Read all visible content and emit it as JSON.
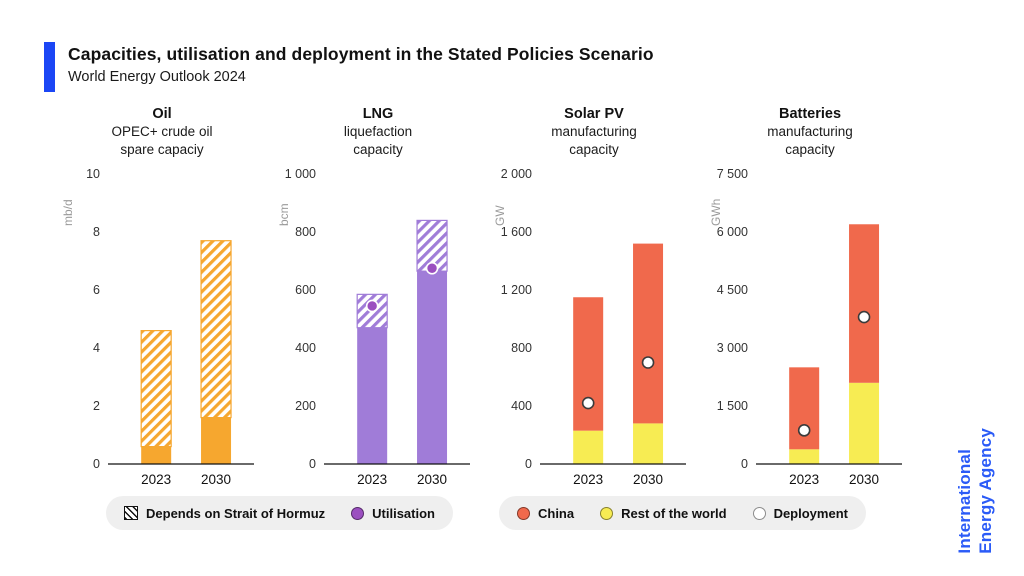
{
  "header": {
    "title": "Capacities, utilisation and deployment in the Stated Policies Scenario",
    "subtitle": "World Energy Outlook 2024"
  },
  "brand": {
    "line1": "International",
    "line2": "Energy Agency"
  },
  "colors": {
    "accent_blue": "#1B46F5",
    "iea_blue": "#2B5BF7",
    "oil_orange": "#F6A72F",
    "lng_purple": "#A07CD8",
    "utilisation": "#9B4FC0",
    "china": "#F0694C",
    "rest_of_world": "#F7EC53",
    "deployment": "#FFFFFF"
  },
  "legends": [
    {
      "items": [
        {
          "icon": "hatch-swatch",
          "label": "Depends on Strait of Hormuz"
        },
        {
          "icon": "utilisation-dot",
          "label": "Utilisation"
        }
      ]
    },
    {
      "items": [
        {
          "icon": "china-dot",
          "label": "China"
        },
        {
          "icon": "rest-of-world-dot",
          "label": "Rest of the world"
        },
        {
          "icon": "deployment-dot",
          "label": "Deployment"
        }
      ]
    }
  ],
  "chart_data": [
    {
      "type": "bar",
      "title": "Oil",
      "subtitle": "OPEC+ crude oil\nspare capaciy",
      "unit": "mb/d",
      "ymax": 10,
      "yticks": [
        {
          "v": 0,
          "label": "0"
        },
        {
          "v": 2,
          "label": "2"
        },
        {
          "v": 4,
          "label": "4"
        },
        {
          "v": 6,
          "label": "6"
        },
        {
          "v": 8,
          "label": "8"
        },
        {
          "v": 10,
          "label": "10"
        }
      ],
      "categories": [
        "2023",
        "2030"
      ],
      "bars": [
        {
          "category": "2023",
          "segments": [
            {
              "name": "spare-capacity",
              "value": 0.6,
              "color": "#F6A72F",
              "pattern": "solid"
            },
            {
              "name": "depends-on-strait-of-hormuz",
              "value": 4.0,
              "color": "#F6A72F",
              "pattern": "hatch"
            }
          ]
        },
        {
          "category": "2030",
          "segments": [
            {
              "name": "spare-capacity",
              "value": 1.6,
              "color": "#F6A72F",
              "pattern": "solid"
            },
            {
              "name": "depends-on-strait-of-hormuz",
              "value": 6.1,
              "color": "#F6A72F",
              "pattern": "hatch"
            }
          ]
        }
      ],
      "markers": []
    },
    {
      "type": "bar",
      "title": "LNG",
      "subtitle": "liquefaction\ncapacity",
      "unit": "bcm",
      "ymax": 1000,
      "yticks": [
        {
          "v": 0,
          "label": "0"
        },
        {
          "v": 200,
          "label": "200"
        },
        {
          "v": 400,
          "label": "400"
        },
        {
          "v": 600,
          "label": "600"
        },
        {
          "v": 800,
          "label": "800"
        },
        {
          "v": 1000,
          "label": "1 000"
        }
      ],
      "categories": [
        "2023",
        "2030"
      ],
      "bars": [
        {
          "category": "2023",
          "segments": [
            {
              "name": "capacity",
              "value": 470,
              "color": "#A07CD8",
              "pattern": "solid"
            },
            {
              "name": "depends-on-strait-of-hormuz",
              "value": 115,
              "color": "#A07CD8",
              "pattern": "hatch"
            }
          ]
        },
        {
          "category": "2030",
          "segments": [
            {
              "name": "capacity",
              "value": 665,
              "color": "#A07CD8",
              "pattern": "solid"
            },
            {
              "name": "depends-on-strait-of-hormuz",
              "value": 175,
              "color": "#A07CD8",
              "pattern": "hatch"
            }
          ]
        }
      ],
      "markers": [
        {
          "category": "2023",
          "name": "utilisation",
          "value": 545,
          "fill": "#9B4FC0",
          "stroke": "#FFFFFF"
        },
        {
          "category": "2030",
          "name": "utilisation",
          "value": 675,
          "fill": "#9B4FC0",
          "stroke": "#FFFFFF"
        }
      ]
    },
    {
      "type": "bar",
      "title": "Solar PV",
      "subtitle": "manufacturing\ncapacity",
      "unit": "GW",
      "ymax": 2000,
      "yticks": [
        {
          "v": 0,
          "label": "0"
        },
        {
          "v": 400,
          "label": "400"
        },
        {
          "v": 800,
          "label": "800"
        },
        {
          "v": 1200,
          "label": "1 200"
        },
        {
          "v": 1600,
          "label": "1 600"
        },
        {
          "v": 2000,
          "label": "2 000"
        }
      ],
      "categories": [
        "2023",
        "2030"
      ],
      "bars": [
        {
          "category": "2023",
          "segments": [
            {
              "name": "rest-of-the-world",
              "value": 230,
              "color": "#F7EC53",
              "pattern": "solid"
            },
            {
              "name": "china",
              "value": 920,
              "color": "#F0694C",
              "pattern": "solid"
            }
          ]
        },
        {
          "category": "2030",
          "segments": [
            {
              "name": "rest-of-the-world",
              "value": 280,
              "color": "#F7EC53",
              "pattern": "solid"
            },
            {
              "name": "china",
              "value": 1240,
              "color": "#F0694C",
              "pattern": "solid"
            }
          ]
        }
      ],
      "markers": [
        {
          "category": "2023",
          "name": "deployment",
          "value": 420,
          "fill": "#FFFFFF",
          "stroke": "#3b3b3b"
        },
        {
          "category": "2030",
          "name": "deployment",
          "value": 700,
          "fill": "#FFFFFF",
          "stroke": "#3b3b3b"
        }
      ]
    },
    {
      "type": "bar",
      "title": "Batteries",
      "subtitle": "manufacturing\ncapacity",
      "unit": "GWh",
      "ymax": 7500,
      "yticks": [
        {
          "v": 0,
          "label": "0"
        },
        {
          "v": 1500,
          "label": "1 500"
        },
        {
          "v": 3000,
          "label": "3 000"
        },
        {
          "v": 4500,
          "label": "4 500"
        },
        {
          "v": 6000,
          "label": "6 000"
        },
        {
          "v": 7500,
          "label": "7 500"
        }
      ],
      "categories": [
        "2023",
        "2030"
      ],
      "bars": [
        {
          "category": "2023",
          "segments": [
            {
              "name": "rest-of-the-world",
              "value": 380,
              "color": "#F7EC53",
              "pattern": "solid"
            },
            {
              "name": "china",
              "value": 2120,
              "color": "#F0694C",
              "pattern": "solid"
            }
          ]
        },
        {
          "category": "2030",
          "segments": [
            {
              "name": "rest-of-the-world",
              "value": 2100,
              "color": "#F7EC53",
              "pattern": "solid"
            },
            {
              "name": "china",
              "value": 4100,
              "color": "#F0694C",
              "pattern": "solid"
            }
          ]
        }
      ],
      "markers": [
        {
          "category": "2023",
          "name": "deployment",
          "value": 870,
          "fill": "#FFFFFF",
          "stroke": "#3b3b3b"
        },
        {
          "category": "2030",
          "name": "deployment",
          "value": 3800,
          "fill": "#FFFFFF",
          "stroke": "#3b3b3b"
        }
      ]
    }
  ]
}
